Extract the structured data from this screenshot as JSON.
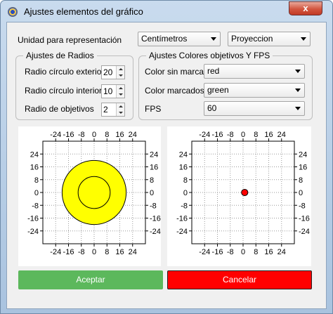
{
  "window": {
    "title": "Ajustes elementos del gráfico",
    "close_label": "x",
    "icon": "app-target-icon"
  },
  "unidad": {
    "label": "Unidad para representación",
    "unit_value": "Centímetros",
    "mode_value": "Proyeccion"
  },
  "radios": {
    "group_title": "Ajustes de Radios",
    "rows": [
      {
        "label": "Radio círculo exterior",
        "value": "20"
      },
      {
        "label": "Radio círculo interior",
        "value": "10"
      },
      {
        "label": "Radio de objetivos",
        "value": "2"
      }
    ]
  },
  "colores": {
    "group_title": "Ajustes Colores objetivos Y FPS",
    "rows": [
      {
        "label": "Color sin marcar",
        "value": "red"
      },
      {
        "label": "Color marcados",
        "value": "green"
      },
      {
        "label": "FPS",
        "value": "60"
      }
    ]
  },
  "chart_data": [
    {
      "type": "scatter",
      "name": "preview-radios",
      "xticks": [
        -24,
        -16,
        -8,
        0,
        8,
        16,
        24
      ],
      "yticks": [
        24,
        16,
        8,
        0,
        -8,
        -16,
        -24
      ],
      "xlim": [
        -32,
        32
      ],
      "ylim": [
        -32,
        32
      ],
      "grid": true,
      "circles": [
        {
          "cx": 0,
          "cy": 0,
          "r": 20,
          "fill": "#ffff00"
        },
        {
          "cx": 0,
          "cy": 0,
          "r": 10,
          "fill": "none"
        }
      ]
    },
    {
      "type": "scatter",
      "name": "preview-objetivos",
      "xticks": [
        -24,
        -16,
        -8,
        0,
        8,
        16,
        24
      ],
      "yticks": [
        24,
        16,
        8,
        0,
        -8,
        -16,
        -24
      ],
      "xlim": [
        -32,
        32
      ],
      "ylim": [
        -32,
        32
      ],
      "grid": true,
      "points": [
        {
          "x": 1,
          "y": 0,
          "r": 2,
          "color": "#ff0000"
        }
      ]
    }
  ],
  "buttons": {
    "accept_label": "Aceptar",
    "cancel_label": "Cancelar",
    "accept_color": "#5cb85c",
    "cancel_color": "#ff0000"
  }
}
